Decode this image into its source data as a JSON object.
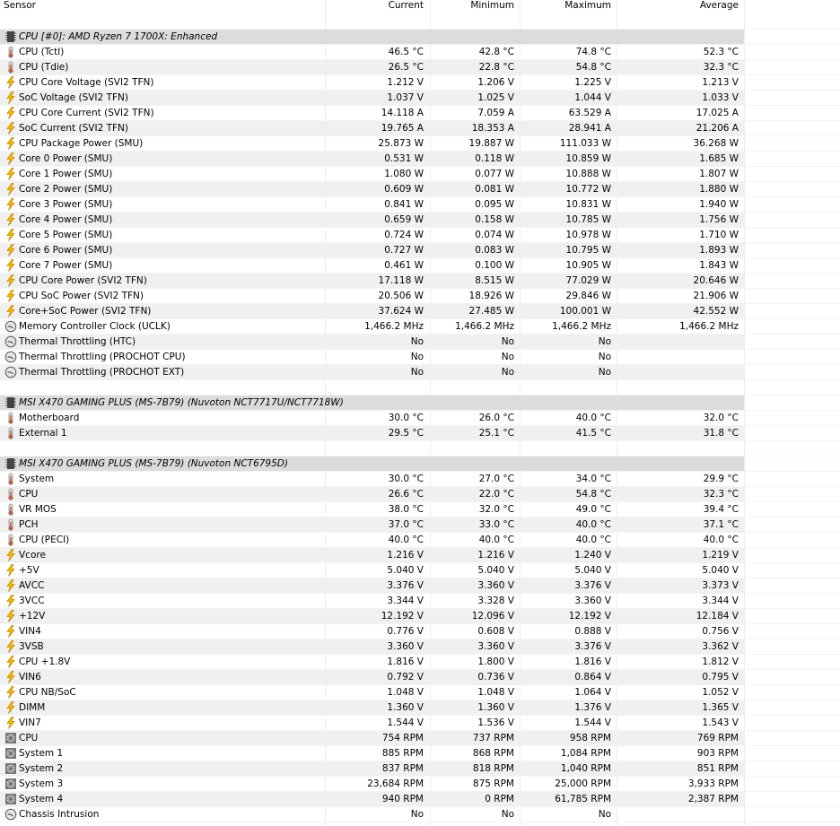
{
  "columns": {
    "sensor": "Sensor",
    "current": "Current",
    "minimum": "Minimum",
    "maximum": "Maximum",
    "average": "Average"
  },
  "colors": {
    "group_bg": "#dcdcdc",
    "alt_row": "#f0f0f0",
    "thermo": "#c08060",
    "volt": "#f0b000"
  },
  "rows": [
    {
      "type": "blank"
    },
    {
      "type": "group",
      "icon": "chip-icon",
      "name": "CPU [#0]: AMD Ryzen 7 1700X: Enhanced"
    },
    {
      "icon": "thermometer-icon",
      "name": "CPU (Tctl)",
      "cur": "46.5 °C",
      "min": "42.8 °C",
      "max": "74.8 °C",
      "avg": "52.3 °C"
    },
    {
      "icon": "thermometer-icon",
      "name": "CPU (Tdie)",
      "cur": "26.5 °C",
      "min": "22.8 °C",
      "max": "54.8 °C",
      "avg": "32.3 °C"
    },
    {
      "icon": "lightning-icon",
      "name": "CPU Core Voltage (SVI2 TFN)",
      "cur": "1.212 V",
      "min": "1.206 V",
      "max": "1.225 V",
      "avg": "1.213 V"
    },
    {
      "icon": "lightning-icon",
      "name": "SoC Voltage (SVI2 TFN)",
      "cur": "1.037 V",
      "min": "1.025 V",
      "max": "1.044 V",
      "avg": "1.033 V"
    },
    {
      "icon": "lightning-icon",
      "name": "CPU Core Current (SVI2 TFN)",
      "cur": "14.118 A",
      "min": "7.059 A",
      "max": "63.529 A",
      "avg": "17.025 A"
    },
    {
      "icon": "lightning-icon",
      "name": "SoC Current (SVI2 TFN)",
      "cur": "19.765 A",
      "min": "18.353 A",
      "max": "28.941 A",
      "avg": "21.206 A"
    },
    {
      "icon": "lightning-icon",
      "name": "CPU Package Power (SMU)",
      "cur": "25.873 W",
      "min": "19.887 W",
      "max": "111.033 W",
      "avg": "36.268 W"
    },
    {
      "icon": "lightning-icon",
      "name": "Core 0 Power (SMU)",
      "cur": "0.531 W",
      "min": "0.118 W",
      "max": "10.859 W",
      "avg": "1.685 W"
    },
    {
      "icon": "lightning-icon",
      "name": "Core 1 Power (SMU)",
      "cur": "1.080 W",
      "min": "0.077 W",
      "max": "10.888 W",
      "avg": "1.807 W"
    },
    {
      "icon": "lightning-icon",
      "name": "Core 2 Power (SMU)",
      "cur": "0.609 W",
      "min": "0.081 W",
      "max": "10.772 W",
      "avg": "1.880 W"
    },
    {
      "icon": "lightning-icon",
      "name": "Core 3 Power (SMU)",
      "cur": "0.841 W",
      "min": "0.095 W",
      "max": "10.831 W",
      "avg": "1.940 W"
    },
    {
      "icon": "lightning-icon",
      "name": "Core 4 Power (SMU)",
      "cur": "0.659 W",
      "min": "0.158 W",
      "max": "10.785 W",
      "avg": "1.756 W"
    },
    {
      "icon": "lightning-icon",
      "name": "Core 5 Power (SMU)",
      "cur": "0.724 W",
      "min": "0.074 W",
      "max": "10.978 W",
      "avg": "1.710 W"
    },
    {
      "icon": "lightning-icon",
      "name": "Core 6 Power (SMU)",
      "cur": "0.727 W",
      "min": "0.083 W",
      "max": "10.795 W",
      "avg": "1.893 W"
    },
    {
      "icon": "lightning-icon",
      "name": "Core 7 Power (SMU)",
      "cur": "0.461 W",
      "min": "0.100 W",
      "max": "10.905 W",
      "avg": "1.843 W"
    },
    {
      "icon": "lightning-icon",
      "name": "CPU Core Power (SVI2 TFN)",
      "cur": "17.118 W",
      "min": "8.515 W",
      "max": "77.029 W",
      "avg": "20.646 W"
    },
    {
      "icon": "lightning-icon",
      "name": "CPU SoC Power (SVI2 TFN)",
      "cur": "20.506 W",
      "min": "18.926 W",
      "max": "29.846 W",
      "avg": "21.906 W"
    },
    {
      "icon": "lightning-icon",
      "name": "Core+SoC Power (SVI2 TFN)",
      "cur": "37.624 W",
      "min": "27.485 W",
      "max": "100.001 W",
      "avg": "42.552 W"
    },
    {
      "icon": "clock-icon",
      "name": "Memory Controller Clock (UCLK)",
      "cur": "1,466.2 MHz",
      "min": "1,466.2 MHz",
      "max": "1,466.2 MHz",
      "avg": "1,466.2 MHz"
    },
    {
      "icon": "clock-icon",
      "name": "Thermal Throttling (HTC)",
      "cur": "No",
      "min": "No",
      "max": "No",
      "avg": ""
    },
    {
      "icon": "clock-icon",
      "name": "Thermal Throttling (PROCHOT CPU)",
      "cur": "No",
      "min": "No",
      "max": "No",
      "avg": ""
    },
    {
      "icon": "clock-icon",
      "name": "Thermal Throttling (PROCHOT EXT)",
      "cur": "No",
      "min": "No",
      "max": "No",
      "avg": ""
    },
    {
      "type": "blank"
    },
    {
      "type": "group",
      "icon": "chip-icon",
      "name": "MSI X470 GAMING PLUS (MS-7B79) (Nuvoton NCT7717U/NCT7718W)"
    },
    {
      "icon": "thermometer-icon",
      "name": "Motherboard",
      "cur": "30.0 °C",
      "min": "26.0 °C",
      "max": "40.0 °C",
      "avg": "32.0 °C"
    },
    {
      "icon": "thermometer-icon",
      "name": "External 1",
      "cur": "29.5 °C",
      "min": "25.1 °C",
      "max": "41.5 °C",
      "avg": "31.8 °C"
    },
    {
      "type": "blank"
    },
    {
      "type": "group",
      "icon": "chip-icon",
      "name": "MSI X470 GAMING PLUS (MS-7B79) (Nuvoton NCT6795D)"
    },
    {
      "icon": "thermometer-icon",
      "name": "System",
      "cur": "30.0 °C",
      "min": "27.0 °C",
      "max": "34.0 °C",
      "avg": "29.9 °C"
    },
    {
      "icon": "thermometer-icon",
      "name": "CPU",
      "cur": "26.6 °C",
      "min": "22.0 °C",
      "max": "54.8 °C",
      "avg": "32.3 °C"
    },
    {
      "icon": "thermometer-icon",
      "name": "VR MOS",
      "cur": "38.0 °C",
      "min": "32.0 °C",
      "max": "49.0 °C",
      "avg": "39.4 °C"
    },
    {
      "icon": "thermometer-icon",
      "name": "PCH",
      "cur": "37.0 °C",
      "min": "33.0 °C",
      "max": "40.0 °C",
      "avg": "37.1 °C"
    },
    {
      "icon": "thermometer-icon",
      "name": "CPU (PECI)",
      "cur": "40.0 °C",
      "min": "40.0 °C",
      "max": "40.0 °C",
      "avg": "40.0 °C"
    },
    {
      "icon": "lightning-icon",
      "name": "Vcore",
      "cur": "1.216 V",
      "min": "1.216 V",
      "max": "1.240 V",
      "avg": "1.219 V"
    },
    {
      "icon": "lightning-icon",
      "name": "+5V",
      "cur": "5.040 V",
      "min": "5.040 V",
      "max": "5.040 V",
      "avg": "5.040 V"
    },
    {
      "icon": "lightning-icon",
      "name": "AVCC",
      "cur": "3.376 V",
      "min": "3.360 V",
      "max": "3.376 V",
      "avg": "3.373 V"
    },
    {
      "icon": "lightning-icon",
      "name": "3VCC",
      "cur": "3.344 V",
      "min": "3.328 V",
      "max": "3.360 V",
      "avg": "3.344 V"
    },
    {
      "icon": "lightning-icon",
      "name": "+12V",
      "cur": "12.192 V",
      "min": "12.096 V",
      "max": "12.192 V",
      "avg": "12.184 V"
    },
    {
      "icon": "lightning-icon",
      "name": "VIN4",
      "cur": "0.776 V",
      "min": "0.608 V",
      "max": "0.888 V",
      "avg": "0.756 V"
    },
    {
      "icon": "lightning-icon",
      "name": "3VSB",
      "cur": "3.360 V",
      "min": "3.360 V",
      "max": "3.376 V",
      "avg": "3.362 V"
    },
    {
      "icon": "lightning-icon",
      "name": "CPU +1.8V",
      "cur": "1.816 V",
      "min": "1.800 V",
      "max": "1.816 V",
      "avg": "1.812 V"
    },
    {
      "icon": "lightning-icon",
      "name": "VIN6",
      "cur": "0.792 V",
      "min": "0.736 V",
      "max": "0.864 V",
      "avg": "0.795 V"
    },
    {
      "icon": "lightning-icon",
      "name": "CPU NB/SoC",
      "cur": "1.048 V",
      "min": "1.048 V",
      "max": "1.064 V",
      "avg": "1.052 V"
    },
    {
      "icon": "lightning-icon",
      "name": "DIMM",
      "cur": "1.360 V",
      "min": "1.360 V",
      "max": "1.376 V",
      "avg": "1.365 V"
    },
    {
      "icon": "lightning-icon",
      "name": "VIN7",
      "cur": "1.544 V",
      "min": "1.536 V",
      "max": "1.544 V",
      "avg": "1.543 V"
    },
    {
      "icon": "fan-icon",
      "name": "CPU",
      "cur": "754 RPM",
      "min": "737 RPM",
      "max": "958 RPM",
      "avg": "769 RPM"
    },
    {
      "icon": "fan-icon",
      "name": "System 1",
      "cur": "885 RPM",
      "min": "868 RPM",
      "max": "1,084 RPM",
      "avg": "903 RPM"
    },
    {
      "icon": "fan-icon",
      "name": "System 2",
      "cur": "837 RPM",
      "min": "818 RPM",
      "max": "1,040 RPM",
      "avg": "851 RPM"
    },
    {
      "icon": "fan-icon",
      "name": "System 3",
      "cur": "23,684 RPM",
      "min": "875 RPM",
      "max": "25,000 RPM",
      "avg": "3,933 RPM"
    },
    {
      "icon": "fan-icon",
      "name": "System 4",
      "cur": "940 RPM",
      "min": "0 RPM",
      "max": "61,785 RPM",
      "avg": "2,387 RPM"
    },
    {
      "icon": "clock-icon",
      "name": "Chassis Intrusion",
      "cur": "No",
      "min": "No",
      "max": "No",
      "avg": ""
    }
  ]
}
